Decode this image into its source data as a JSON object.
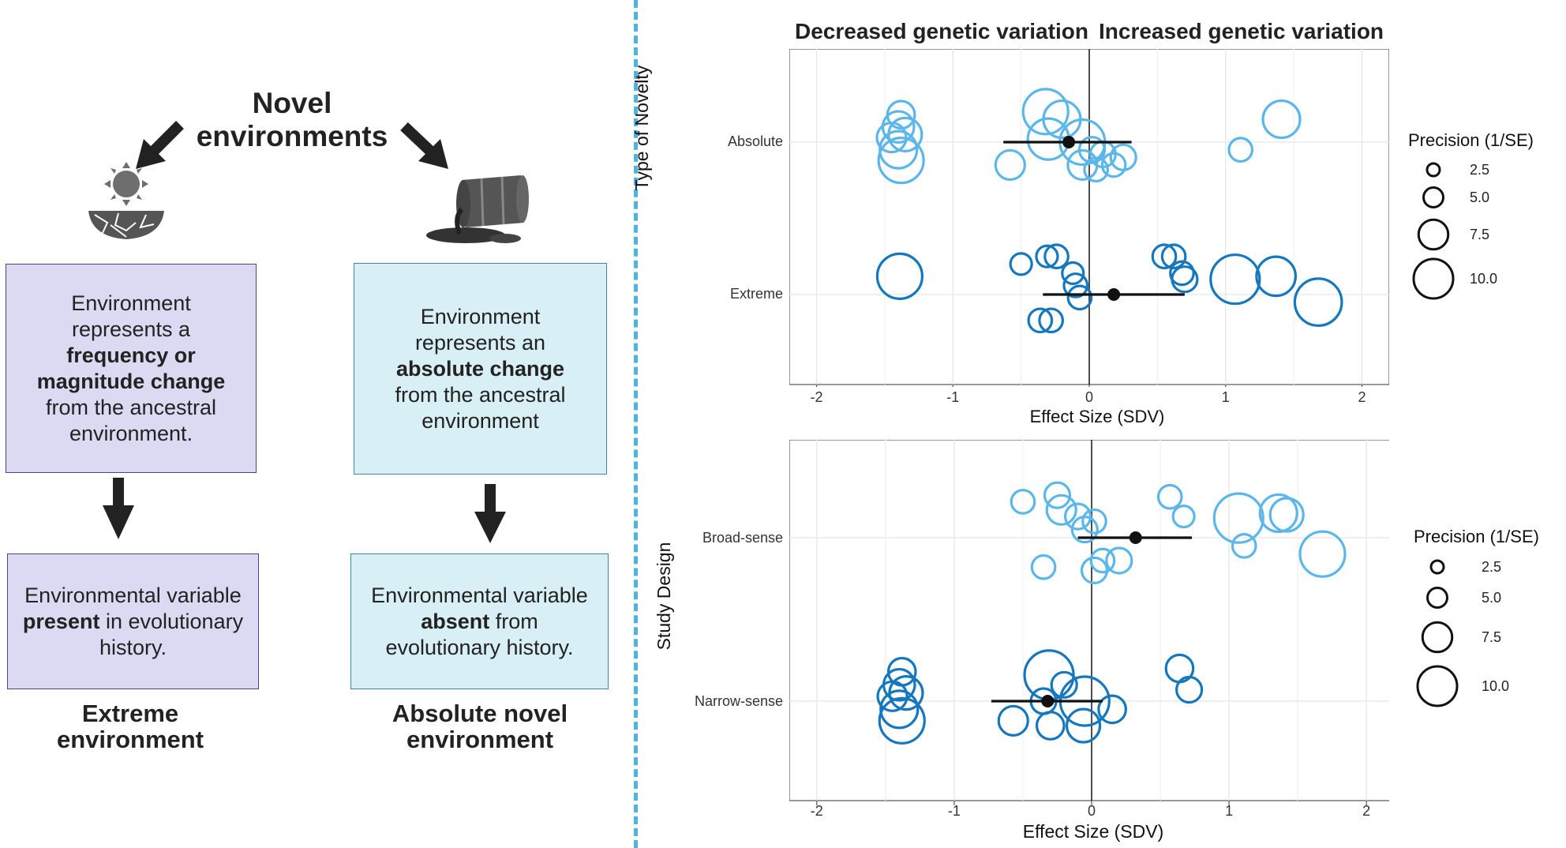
{
  "left": {
    "title": "Novel environments",
    "extreme_box": {
      "line1": "Environment",
      "line2": "represents a",
      "bold": "frequency or magnitude change",
      "line3": "from the ancestral",
      "line4": "environment."
    },
    "absolute_box": {
      "line1": "Environment",
      "line2": "represents an",
      "bold": "absolute change",
      "line3": "from the ancestral",
      "line4": "environment"
    },
    "extreme_lower": {
      "pre": "Environmental variable",
      "bold": "present",
      "post": "in evolutionary history."
    },
    "absolute_lower": {
      "pre": "Environmental variable",
      "bold": "absent",
      "post": "from evolutionary history."
    },
    "caption_extreme": "Extreme environment",
    "caption_absolute": "Absolute novel environment"
  },
  "chart_data": [
    {
      "type": "scatter",
      "ylabel": "Type of Novelty",
      "xlabel": "Effect Size (SDV)",
      "xlim": [
        -2.2,
        2.2
      ],
      "xticks": [
        "-2",
        "-1",
        "0",
        "1",
        "2"
      ],
      "categories": [
        "Absolute",
        "Extreme"
      ],
      "top_label_left": "Decreased genetic variation",
      "top_label_right": "Increased genetic variation",
      "legend_title": "Precision (1/SE)",
      "legend_values": [
        "2.5",
        "5.0",
        "7.5",
        "10.0"
      ],
      "colors": {
        "Absolute": "#5bb7ea",
        "Extreme": "#1577bd"
      },
      "means": [
        {
          "category": "Absolute",
          "mean": -0.15,
          "ci": [
            -0.63,
            0.31
          ]
        },
        {
          "category": "Extreme",
          "mean": 0.18,
          "ci": [
            -0.34,
            0.7
          ]
        }
      ],
      "points": [
        {
          "category": "Absolute",
          "x": -1.38,
          "off": 0.18,
          "p": 4.5
        },
        {
          "category": "Absolute",
          "x": -1.4,
          "off": 0.1,
          "p": 5.5
        },
        {
          "category": "Absolute",
          "x": -1.45,
          "off": 0.03,
          "p": 5
        },
        {
          "category": "Absolute",
          "x": -1.35,
          "off": 0.05,
          "p": 6
        },
        {
          "category": "Absolute",
          "x": -1.4,
          "off": -0.05,
          "p": 7
        },
        {
          "category": "Absolute",
          "x": -1.38,
          "off": -0.12,
          "p": 9
        },
        {
          "category": "Absolute",
          "x": -0.32,
          "off": 0.2,
          "p": 9
        },
        {
          "category": "Absolute",
          "x": -0.2,
          "off": 0.15,
          "p": 7
        },
        {
          "category": "Absolute",
          "x": -0.3,
          "off": 0.02,
          "p": 8
        },
        {
          "category": "Absolute",
          "x": -0.05,
          "off": 0.0,
          "p": 9
        },
        {
          "category": "Absolute",
          "x": 0.02,
          "off": -0.05,
          "p": 4
        },
        {
          "category": "Absolute",
          "x": 0.1,
          "off": -0.08,
          "p": 4
        },
        {
          "category": "Absolute",
          "x": 0.25,
          "off": -0.1,
          "p": 4
        },
        {
          "category": "Absolute",
          "x": 0.18,
          "off": -0.15,
          "p": 3.5
        },
        {
          "category": "Absolute",
          "x": -0.05,
          "off": -0.15,
          "p": 5
        },
        {
          "category": "Absolute",
          "x": 0.05,
          "off": -0.18,
          "p": 3.5
        },
        {
          "category": "Absolute",
          "x": -0.58,
          "off": -0.15,
          "p": 5
        },
        {
          "category": "Absolute",
          "x": 1.41,
          "off": 0.15,
          "p": 7
        },
        {
          "category": "Absolute",
          "x": 1.11,
          "off": -0.05,
          "p": 3.5
        },
        {
          "category": "Extreme",
          "x": -1.39,
          "off": 0.12,
          "p": 9
        },
        {
          "category": "Extreme",
          "x": -0.5,
          "off": 0.2,
          "p": 3
        },
        {
          "category": "Extreme",
          "x": -0.31,
          "off": 0.25,
          "p": 3
        },
        {
          "category": "Extreme",
          "x": -0.24,
          "off": 0.25,
          "p": 3.5
        },
        {
          "category": "Extreme",
          "x": -0.12,
          "off": 0.14,
          "p": 3
        },
        {
          "category": "Extreme",
          "x": -0.1,
          "off": 0.06,
          "p": 3.5
        },
        {
          "category": "Extreme",
          "x": -0.07,
          "off": -0.02,
          "p": 3.5
        },
        {
          "category": "Extreme",
          "x": -0.28,
          "off": -0.17,
          "p": 3.5
        },
        {
          "category": "Extreme",
          "x": -0.36,
          "off": -0.17,
          "p": 3.5
        },
        {
          "category": "Extreme",
          "x": 0.55,
          "off": 0.25,
          "p": 3.5
        },
        {
          "category": "Extreme",
          "x": 0.62,
          "off": 0.25,
          "p": 3.5
        },
        {
          "category": "Extreme",
          "x": 0.68,
          "off": 0.14,
          "p": 3.5
        },
        {
          "category": "Extreme",
          "x": 0.7,
          "off": 0.1,
          "p": 4
        },
        {
          "category": "Extreme",
          "x": 1.07,
          "off": 0.1,
          "p": 10
        },
        {
          "category": "Extreme",
          "x": 1.37,
          "off": 0.12,
          "p": 7.5
        },
        {
          "category": "Extreme",
          "x": 1.68,
          "off": -0.05,
          "p": 9.5
        }
      ]
    },
    {
      "type": "scatter",
      "ylabel": "Study Design",
      "xlabel": "Effect Size (SDV)",
      "xlim": [
        -2.2,
        2.2
      ],
      "xticks": [
        "-2",
        "-1",
        "0",
        "1",
        "2"
      ],
      "categories": [
        "Broad-sense",
        "Narrow-sense"
      ],
      "legend_title": "Precision (1/SE)",
      "legend_values": [
        "2.5",
        "5.0",
        "7.5",
        "10.0"
      ],
      "colors": {
        "Broad-sense": "#5bb7ea",
        "Narrow-sense": "#1577bd"
      },
      "means": [
        {
          "category": "Broad-sense",
          "mean": 0.32,
          "ci": [
            -0.1,
            0.73
          ]
        },
        {
          "category": "Narrow-sense",
          "mean": -0.32,
          "ci": [
            -0.73,
            0.08
          ]
        }
      ],
      "points": [
        {
          "category": "Broad-sense",
          "x": -0.5,
          "off": 0.22,
          "p": 3.5
        },
        {
          "category": "Broad-sense",
          "x": -0.25,
          "off": 0.26,
          "p": 4
        },
        {
          "category": "Broad-sense",
          "x": -0.22,
          "off": 0.17,
          "p": 5
        },
        {
          "category": "Broad-sense",
          "x": -0.1,
          "off": 0.13,
          "p": 4
        },
        {
          "category": "Broad-sense",
          "x": 0.02,
          "off": 0.1,
          "p": 3.5
        },
        {
          "category": "Broad-sense",
          "x": -0.05,
          "off": 0.05,
          "p": 4
        },
        {
          "category": "Broad-sense",
          "x": 0.57,
          "off": 0.25,
          "p": 3.5
        },
        {
          "category": "Broad-sense",
          "x": 0.67,
          "off": 0.13,
          "p": 3
        },
        {
          "category": "Broad-sense",
          "x": 1.07,
          "off": 0.12,
          "p": 10
        },
        {
          "category": "Broad-sense",
          "x": 1.36,
          "off": 0.15,
          "p": 7
        },
        {
          "category": "Broad-sense",
          "x": 1.42,
          "off": 0.14,
          "p": 6
        },
        {
          "category": "Broad-sense",
          "x": 1.68,
          "off": -0.1,
          "p": 9
        },
        {
          "category": "Broad-sense",
          "x": 1.11,
          "off": -0.05,
          "p": 3.5
        },
        {
          "category": "Broad-sense",
          "x": -0.35,
          "off": -0.18,
          "p": 3.5
        },
        {
          "category": "Broad-sense",
          "x": 0.02,
          "off": -0.2,
          "p": 4
        },
        {
          "category": "Broad-sense",
          "x": 0.08,
          "off": -0.14,
          "p": 3.5
        },
        {
          "category": "Broad-sense",
          "x": 0.2,
          "off": -0.14,
          "p": 4
        },
        {
          "category": "Narrow-sense",
          "x": -1.38,
          "off": 0.18,
          "p": 4.5
        },
        {
          "category": "Narrow-sense",
          "x": -1.4,
          "off": 0.1,
          "p": 5.5
        },
        {
          "category": "Narrow-sense",
          "x": -1.45,
          "off": 0.03,
          "p": 5
        },
        {
          "category": "Narrow-sense",
          "x": -1.35,
          "off": 0.05,
          "p": 6
        },
        {
          "category": "Narrow-sense",
          "x": -1.4,
          "off": -0.05,
          "p": 7
        },
        {
          "category": "Narrow-sense",
          "x": -1.38,
          "off": -0.12,
          "p": 9
        },
        {
          "category": "Narrow-sense",
          "x": -0.31,
          "off": 0.16,
          "p": 10
        },
        {
          "category": "Narrow-sense",
          "x": -0.2,
          "off": 0.1,
          "p": 4
        },
        {
          "category": "Narrow-sense",
          "x": -0.05,
          "off": 0.0,
          "p": 10
        },
        {
          "category": "Narrow-sense",
          "x": -0.35,
          "off": 0.0,
          "p": 4
        },
        {
          "category": "Narrow-sense",
          "x": -0.57,
          "off": -0.12,
          "p": 5
        },
        {
          "category": "Narrow-sense",
          "x": -0.3,
          "off": -0.15,
          "p": 4.5
        },
        {
          "category": "Narrow-sense",
          "x": -0.06,
          "off": -0.15,
          "p": 6
        },
        {
          "category": "Narrow-sense",
          "x": 0.15,
          "off": -0.05,
          "p": 4.5
        },
        {
          "category": "Narrow-sense",
          "x": 0.64,
          "off": 0.2,
          "p": 4.5
        },
        {
          "category": "Narrow-sense",
          "x": 0.71,
          "off": 0.07,
          "p": 4
        }
      ]
    }
  ]
}
